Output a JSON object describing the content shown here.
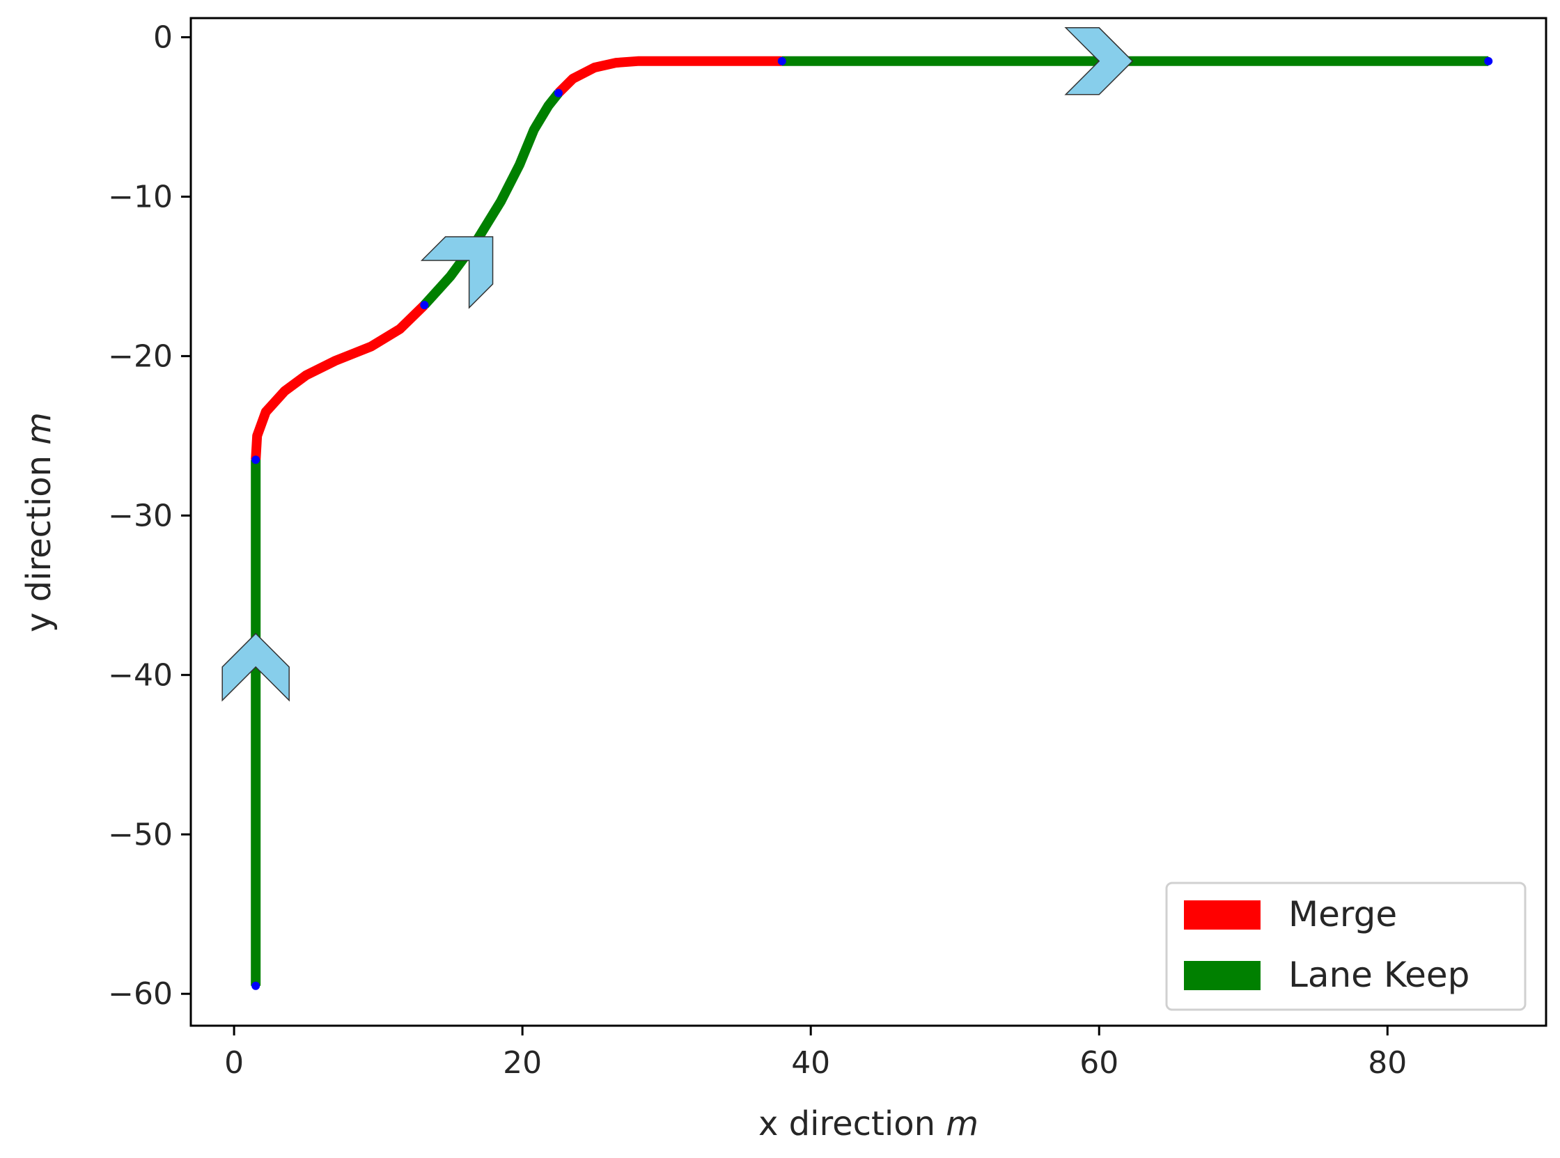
{
  "chart_data": {
    "type": "line",
    "xlabel_prefix": "x direction ",
    "xlabel_unit": "m",
    "ylabel_prefix": "y direction ",
    "ylabel_unit": "m",
    "xlim": [
      -3,
      91
    ],
    "ylim": [
      -62,
      1.2
    ],
    "x_ticks": [
      0,
      20,
      40,
      60,
      80
    ],
    "y_ticks": [
      0,
      -10,
      -20,
      -30,
      -40,
      -50,
      -60
    ],
    "x_tick_labels": [
      "0",
      "20",
      "40",
      "60",
      "80"
    ],
    "y_tick_labels": [
      "0",
      "−10",
      "−20",
      "−30",
      "−40",
      "−50",
      "−60"
    ],
    "grid": false,
    "legend_position": "lower right",
    "series": [
      {
        "name": "Merge",
        "color": "#ff0000",
        "segments": [
          {
            "x": [
              1.5,
              1.6,
              2.2,
              3.5,
              5.0,
              7.0,
              9.5,
              11.5,
              13.2
            ],
            "y": [
              -26.5,
              -25.0,
              -23.5,
              -22.2,
              -21.2,
              -20.3,
              -19.4,
              -18.3,
              -16.8
            ]
          },
          {
            "x": [
              22.5,
              23.5,
              25.0,
              26.5,
              28.0,
              31.0,
              34.5,
              38.0
            ],
            "y": [
              -3.5,
              -2.6,
              -1.9,
              -1.6,
              -1.5,
              -1.5,
              -1.5,
              -1.5
            ]
          }
        ]
      },
      {
        "name": "Lane Keep",
        "color": "#008000",
        "segments": [
          {
            "x": [
              1.5,
              1.5,
              1.5
            ],
            "y": [
              -59.5,
              -43.0,
              -26.5
            ]
          },
          {
            "x": [
              13.2,
              15.0,
              16.8,
              18.5,
              19.8,
              20.8,
              21.8,
              22.5
            ],
            "y": [
              -16.8,
              -15.0,
              -12.8,
              -10.3,
              -8.0,
              -5.8,
              -4.3,
              -3.5
            ]
          },
          {
            "x": [
              38.0,
              50.0,
              62.0,
              75.0,
              87.0
            ],
            "y": [
              -1.5,
              -1.5,
              -1.5,
              -1.5,
              -1.5
            ]
          }
        ]
      }
    ],
    "transition_points": {
      "color": "#0000ff",
      "x": [
        1.5,
        1.5,
        13.2,
        22.5,
        38.0,
        87.0
      ],
      "y": [
        -59.5,
        -26.5,
        -16.8,
        -3.5,
        -1.5,
        -1.5
      ]
    },
    "arrows": {
      "color": "#87ceeb",
      "x": [
        1.5,
        16.3,
        60.0
      ],
      "y": [
        -39.5,
        -14.0,
        -1.5
      ],
      "heading_deg": [
        90,
        45,
        0
      ]
    },
    "legend": [
      {
        "label": "Merge",
        "color": "#ff0000"
      },
      {
        "label": "Lane Keep",
        "color": "#008000"
      }
    ]
  }
}
